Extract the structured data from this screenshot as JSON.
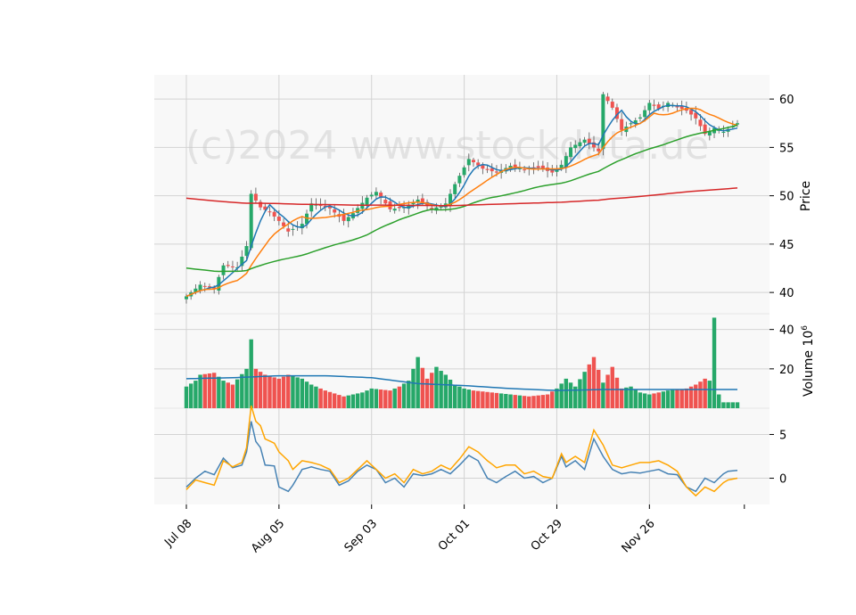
{
  "watermark": "(c)2024 www.stockdata.de",
  "chart_data": [
    {
      "type": "candlestick",
      "panel": "price",
      "ylabel": "Price",
      "ylim": [
        37.8,
        62.5
      ],
      "yticks": [
        40,
        45,
        50,
        55,
        60
      ],
      "xticks": [
        "Jul 08",
        "Aug 05",
        "Sep 03",
        "Oct 01",
        "Oct 29",
        "Nov 26"
      ],
      "xtick_index": [
        0,
        20,
        40,
        60,
        80,
        100
      ],
      "x_count": 120,
      "colors": {
        "up": "#26a869",
        "down": "#ef5350",
        "ma_fast": "#1f77b4",
        "ma_mid": "#ff7f0e",
        "ma_slow": "#2ca02c",
        "ma_long": "#d62728"
      },
      "close_anchors": [
        [
          0,
          39.6
        ],
        [
          3,
          40.8
        ],
        [
          6,
          40.4
        ],
        [
          8,
          42.8
        ],
        [
          11,
          42.6
        ],
        [
          13,
          44.8
        ],
        [
          14,
          50.2
        ],
        [
          16,
          48.8
        ],
        [
          18,
          48.3
        ],
        [
          20,
          47.4
        ],
        [
          22,
          46.3
        ],
        [
          25,
          47.1
        ],
        [
          27,
          49.2
        ],
        [
          31,
          48.7
        ],
        [
          34,
          47.4
        ],
        [
          36,
          48.2
        ],
        [
          39,
          49.8
        ],
        [
          41,
          50.4
        ],
        [
          44,
          48.6
        ],
        [
          47,
          48.8
        ],
        [
          50,
          49.6
        ],
        [
          53,
          48.6
        ],
        [
          56,
          49.2
        ],
        [
          58,
          51.2
        ],
        [
          61,
          53.8
        ],
        [
          64,
          52.8
        ],
        [
          67,
          52.4
        ],
        [
          70,
          53.1
        ],
        [
          73,
          52.7
        ],
        [
          76,
          52.9
        ],
        [
          79,
          52.4
        ],
        [
          81,
          53.2
        ],
        [
          83,
          55.0
        ],
        [
          86,
          55.8
        ],
        [
          89,
          54.6
        ],
        [
          90,
          60.5
        ],
        [
          92,
          59.1
        ],
        [
          94,
          56.8
        ],
        [
          96,
          57.5
        ],
        [
          98,
          58.1
        ],
        [
          100,
          59.6
        ],
        [
          102,
          59.0
        ],
        [
          104,
          59.6
        ],
        [
          106,
          59.2
        ],
        [
          108,
          58.8
        ],
        [
          110,
          58.0
        ],
        [
          112,
          56.4
        ],
        [
          114,
          57.0
        ],
        [
          116,
          56.6
        ],
        [
          118,
          57.2
        ],
        [
          119,
          57.5
        ]
      ]
    },
    {
      "type": "bar",
      "panel": "volume",
      "ylabel": "Volume  10",
      "ylabel_exponent": "6",
      "ylim": [
        0,
        48
      ],
      "yticks": [
        20,
        40
      ],
      "volume_anchors": [
        [
          0,
          11
        ],
        [
          2,
          14
        ],
        [
          3,
          17
        ],
        [
          6,
          18
        ],
        [
          8,
          14
        ],
        [
          10,
          12
        ],
        [
          13,
          20
        ],
        [
          14,
          35
        ],
        [
          15,
          20
        ],
        [
          17,
          17
        ],
        [
          20,
          15
        ],
        [
          22,
          17
        ],
        [
          25,
          15
        ],
        [
          27,
          12
        ],
        [
          30,
          9
        ],
        [
          34,
          6
        ],
        [
          38,
          8
        ],
        [
          40,
          10
        ],
        [
          44,
          9
        ],
        [
          46,
          11
        ],
        [
          48,
          14
        ],
        [
          50,
          26
        ],
        [
          52,
          15
        ],
        [
          54,
          21
        ],
        [
          56,
          17
        ],
        [
          58,
          12
        ],
        [
          60,
          10
        ],
        [
          62,
          9
        ],
        [
          66,
          8
        ],
        [
          70,
          7
        ],
        [
          74,
          6
        ],
        [
          78,
          7
        ],
        [
          80,
          10
        ],
        [
          82,
          15
        ],
        [
          84,
          11
        ],
        [
          88,
          26
        ],
        [
          90,
          13
        ],
        [
          92,
          21
        ],
        [
          94,
          10
        ],
        [
          96,
          11
        ],
        [
          98,
          8
        ],
        [
          100,
          7
        ],
        [
          104,
          9
        ],
        [
          108,
          10
        ],
        [
          110,
          12
        ],
        [
          112,
          15
        ],
        [
          113,
          14
        ],
        [
          114,
          46
        ],
        [
          115,
          7
        ],
        [
          116,
          3
        ],
        [
          119,
          3
        ]
      ],
      "volume_ma_anchors": [
        [
          0,
          15
        ],
        [
          10,
          15.5
        ],
        [
          20,
          16.5
        ],
        [
          30,
          16.5
        ],
        [
          40,
          15.5
        ],
        [
          50,
          12.5
        ],
        [
          60,
          11.5
        ],
        [
          70,
          10
        ],
        [
          80,
          9
        ],
        [
          90,
          9.5
        ],
        [
          100,
          9.5
        ],
        [
          110,
          9.5
        ],
        [
          119,
          9.5
        ]
      ]
    },
    {
      "type": "line",
      "panel": "indicator",
      "ylim": [
        -3,
        8
      ],
      "yticks": [
        0,
        5
      ],
      "series": [
        {
          "color": "#4682b4",
          "anchors": [
            [
              0,
              -1.0
            ],
            [
              2,
              0
            ],
            [
              4,
              0.8
            ],
            [
              6,
              0.4
            ],
            [
              8,
              2.3
            ],
            [
              10,
              1.2
            ],
            [
              12,
              1.5
            ],
            [
              13,
              3.0
            ],
            [
              14,
              6.5
            ],
            [
              15,
              4.2
            ],
            [
              16,
              3.5
            ],
            [
              17,
              1.5
            ],
            [
              19,
              1.4
            ],
            [
              20,
              -1.0
            ],
            [
              22,
              -1.5
            ],
            [
              23,
              -0.8
            ],
            [
              25,
              1.0
            ],
            [
              27,
              1.3
            ],
            [
              29,
              1.0
            ],
            [
              31,
              0.8
            ],
            [
              33,
              -0.8
            ],
            [
              35,
              -0.3
            ],
            [
              37,
              0.8
            ],
            [
              39,
              1.5
            ],
            [
              41,
              1.0
            ],
            [
              43,
              -0.5
            ],
            [
              45,
              0.0
            ],
            [
              47,
              -1.0
            ],
            [
              49,
              0.5
            ],
            [
              51,
              0.3
            ],
            [
              53,
              0.5
            ],
            [
              55,
              1.0
            ],
            [
              57,
              0.5
            ],
            [
              59,
              1.5
            ],
            [
              61,
              2.6
            ],
            [
              63,
              2.0
            ],
            [
              65,
              0.0
            ],
            [
              67,
              -0.5
            ],
            [
              69,
              0.2
            ],
            [
              71,
              0.8
            ],
            [
              73,
              0.0
            ],
            [
              75,
              0.2
            ],
            [
              77,
              -0.5
            ],
            [
              79,
              0.0
            ],
            [
              81,
              2.5
            ],
            [
              82,
              1.3
            ],
            [
              84,
              2.0
            ],
            [
              86,
              1.0
            ],
            [
              88,
              4.5
            ],
            [
              90,
              2.5
            ],
            [
              92,
              1.0
            ],
            [
              94,
              0.5
            ],
            [
              96,
              0.7
            ],
            [
              98,
              0.6
            ],
            [
              100,
              0.8
            ],
            [
              102,
              1.0
            ],
            [
              104,
              0.5
            ],
            [
              106,
              0.4
            ],
            [
              108,
              -1.0
            ],
            [
              110,
              -1.5
            ],
            [
              112,
              0.0
            ],
            [
              114,
              -0.5
            ],
            [
              116,
              0.5
            ],
            [
              117,
              0.8
            ],
            [
              119,
              0.9
            ]
          ]
        },
        {
          "color": "#ffa500",
          "anchors": [
            [
              0,
              -1.3
            ],
            [
              2,
              -0.2
            ],
            [
              4,
              -0.5
            ],
            [
              6,
              -0.8
            ],
            [
              8,
              2.0
            ],
            [
              10,
              1.3
            ],
            [
              12,
              1.8
            ],
            [
              13,
              3.5
            ],
            [
              14,
              8.3
            ],
            [
              15,
              6.5
            ],
            [
              16,
              6.0
            ],
            [
              17,
              4.5
            ],
            [
              19,
              4.0
            ],
            [
              20,
              3.0
            ],
            [
              22,
              2.0
            ],
            [
              23,
              1.0
            ],
            [
              25,
              2.0
            ],
            [
              27,
              1.8
            ],
            [
              29,
              1.5
            ],
            [
              31,
              1.0
            ],
            [
              33,
              -0.5
            ],
            [
              35,
              0.0
            ],
            [
              37,
              1.0
            ],
            [
              39,
              2.0
            ],
            [
              41,
              1.0
            ],
            [
              43,
              0.0
            ],
            [
              45,
              0.5
            ],
            [
              47,
              -0.5
            ],
            [
              49,
              1.0
            ],
            [
              51,
              0.5
            ],
            [
              53,
              0.8
            ],
            [
              55,
              1.5
            ],
            [
              57,
              1.0
            ],
            [
              59,
              2.2
            ],
            [
              61,
              3.6
            ],
            [
              63,
              3.0
            ],
            [
              65,
              2.0
            ],
            [
              67,
              1.2
            ],
            [
              69,
              1.5
            ],
            [
              71,
              1.5
            ],
            [
              73,
              0.5
            ],
            [
              75,
              0.8
            ],
            [
              77,
              0.2
            ],
            [
              79,
              0.0
            ],
            [
              81,
              2.8
            ],
            [
              82,
              1.8
            ],
            [
              84,
              2.5
            ],
            [
              86,
              1.8
            ],
            [
              88,
              5.5
            ],
            [
              90,
              3.8
            ],
            [
              92,
              1.5
            ],
            [
              94,
              1.2
            ],
            [
              96,
              1.5
            ],
            [
              98,
              1.8
            ],
            [
              100,
              1.8
            ],
            [
              102,
              2.0
            ],
            [
              104,
              1.5
            ],
            [
              106,
              0.8
            ],
            [
              108,
              -1.0
            ],
            [
              110,
              -2.0
            ],
            [
              112,
              -1.0
            ],
            [
              114,
              -1.5
            ],
            [
              116,
              -0.5
            ],
            [
              117,
              -0.2
            ],
            [
              119,
              0.0
            ]
          ]
        }
      ]
    }
  ]
}
